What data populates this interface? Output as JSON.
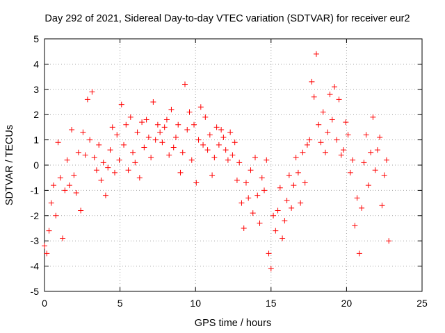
{
  "chart_data": {
    "type": "scatter",
    "title": "Day 292 of 2021, Sidereal Day-to-day VTEC variation (SDTVAR) for receiver eur2",
    "xlabel": "GPS time / hours",
    "ylabel": "SDTVAR / TECUs",
    "xlim": [
      0,
      25
    ],
    "ylim": [
      -5,
      5
    ],
    "xticks": [
      0,
      5,
      10,
      15,
      20,
      25
    ],
    "yticks": [
      -5,
      -4,
      -3,
      -2,
      -1,
      0,
      1,
      2,
      3,
      4,
      5
    ],
    "grid": true,
    "marker": "+",
    "series": [
      {
        "name": "SDTVAR",
        "color": "#ff0000",
        "x": [
          0.0,
          0.15,
          0.3,
          0.45,
          0.6,
          0.75,
          0.9,
          1.05,
          1.2,
          1.35,
          1.5,
          1.65,
          1.8,
          1.95,
          2.1,
          2.25,
          2.4,
          2.55,
          2.7,
          2.85,
          3.0,
          3.15,
          3.3,
          3.45,
          3.6,
          3.75,
          3.9,
          4.05,
          4.2,
          4.35,
          4.5,
          4.65,
          4.8,
          4.95,
          5.1,
          5.25,
          5.4,
          5.55,
          5.7,
          5.85,
          6.0,
          6.15,
          6.3,
          6.45,
          6.6,
          6.75,
          6.9,
          7.05,
          7.2,
          7.35,
          7.5,
          7.65,
          7.8,
          7.95,
          8.1,
          8.25,
          8.4,
          8.55,
          8.7,
          8.85,
          9.0,
          9.15,
          9.3,
          9.45,
          9.6,
          9.75,
          9.9,
          10.05,
          10.2,
          10.35,
          10.5,
          10.65,
          10.8,
          10.95,
          11.1,
          11.25,
          11.4,
          11.55,
          11.7,
          11.85,
          12.0,
          12.15,
          12.3,
          12.45,
          12.6,
          12.75,
          12.9,
          13.05,
          13.2,
          13.35,
          13.5,
          13.65,
          13.8,
          13.95,
          14.1,
          14.25,
          14.4,
          14.55,
          14.7,
          14.85,
          15.0,
          15.15,
          15.3,
          15.45,
          15.6,
          15.75,
          15.9,
          16.05,
          16.2,
          16.35,
          16.5,
          16.65,
          16.8,
          16.95,
          17.1,
          17.25,
          17.4,
          17.55,
          17.7,
          17.85,
          18.0,
          18.15,
          18.3,
          18.45,
          18.6,
          18.75,
          18.9,
          19.05,
          19.2,
          19.35,
          19.5,
          19.65,
          19.8,
          19.95,
          20.1,
          20.25,
          20.4,
          20.55,
          20.7,
          20.85,
          21.0,
          21.15,
          21.3,
          21.45,
          21.6,
          21.75,
          21.9,
          22.05,
          22.2,
          22.35,
          22.5,
          22.65,
          22.8
        ],
        "y": [
          -3.2,
          -3.5,
          -2.6,
          -1.5,
          -0.8,
          -2.0,
          0.9,
          -0.5,
          -2.9,
          -1.0,
          0.2,
          -0.8,
          1.4,
          -0.4,
          -1.1,
          0.5,
          -1.8,
          1.3,
          0.4,
          2.6,
          1.0,
          2.9,
          0.3,
          -0.2,
          0.8,
          -0.6,
          0.1,
          -1.2,
          -0.1,
          0.6,
          1.5,
          -0.3,
          1.2,
          0.2,
          2.4,
          0.8,
          1.6,
          -0.2,
          1.9,
          0.5,
          0.1,
          1.3,
          -0.5,
          1.7,
          0.7,
          1.8,
          1.1,
          0.3,
          2.5,
          1.0,
          1.6,
          1.3,
          0.9,
          1.5,
          1.8,
          0.4,
          2.2,
          0.7,
          1.1,
          1.6,
          -0.3,
          0.5,
          3.2,
          1.4,
          2.1,
          0.2,
          1.6,
          -0.7,
          1.0,
          2.3,
          0.8,
          1.9,
          0.6,
          1.2,
          -0.4,
          0.3,
          1.5,
          0.8,
          1.4,
          1.1,
          0.6,
          0.2,
          1.3,
          0.4,
          0.9,
          -0.6,
          0.1,
          -1.5,
          -2.5,
          -0.7,
          -1.3,
          -0.2,
          -1.9,
          0.3,
          -1.2,
          -2.3,
          -0.5,
          -1.0,
          0.2,
          -3.5,
          -4.1,
          -2.0,
          -2.6,
          -1.8,
          -0.9,
          -2.9,
          -2.2,
          -1.4,
          -0.4,
          -1.7,
          -0.8,
          0.3,
          -0.3,
          -1.5,
          0.5,
          -0.7,
          0.8,
          1.0,
          3.3,
          2.7,
          4.4,
          1.6,
          0.9,
          2.1,
          0.5,
          1.3,
          2.8,
          1.8,
          3.1,
          1.0,
          2.6,
          0.4,
          0.6,
          1.7,
          1.2,
          -0.3,
          0.2,
          -2.4,
          -1.3,
          -3.5,
          -1.7,
          0.1,
          1.2,
          -0.8,
          0.5,
          1.9,
          -0.2,
          0.6,
          1.1,
          -1.6,
          -0.4,
          0.2,
          -3.0
        ]
      }
    ]
  }
}
